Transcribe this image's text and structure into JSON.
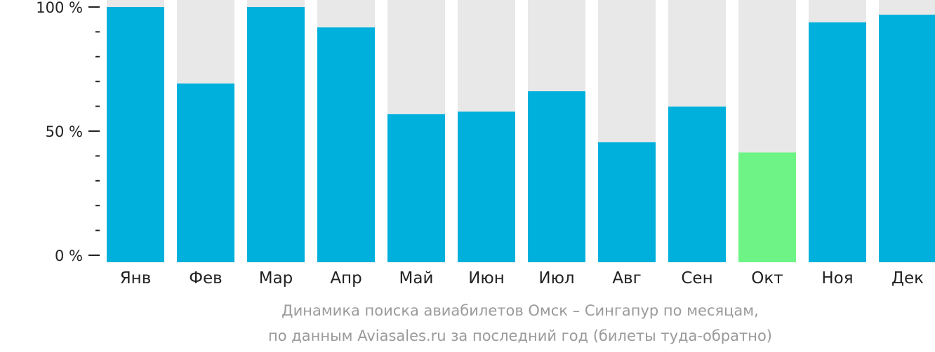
{
  "chart_data": {
    "type": "bar",
    "categories": [
      "Янв",
      "Фев",
      "Мар",
      "Апр",
      "Май",
      "Июн",
      "Июл",
      "Авг",
      "Сен",
      "Окт",
      "Ноя",
      "Дек"
    ],
    "values": [
      100,
      70,
      100,
      92,
      58,
      59,
      67,
      47,
      61,
      43,
      94,
      97
    ],
    "highlight_index": 9,
    "ylim": [
      0,
      100
    ],
    "y_ticks": [
      {
        "value": 100,
        "label": "100 %"
      },
      {
        "value": 50,
        "label": "50 %"
      },
      {
        "value": 0,
        "label": "0 %"
      }
    ],
    "y_minor_ticks": [
      10,
      20,
      30,
      40,
      60,
      70,
      80,
      90
    ],
    "colors": {
      "bar": "#00b0dc",
      "highlight": "#6ef486",
      "background_bar": "#e8e8e8",
      "axis": "#222222",
      "tick_label": "#222222"
    },
    "caption_lines": [
      "Динамика поиска авиабилетов Омск – Сингапур по месяцам,",
      "по данным Aviasales.ru за последний год (билеты туда-обратно)"
    ]
  }
}
